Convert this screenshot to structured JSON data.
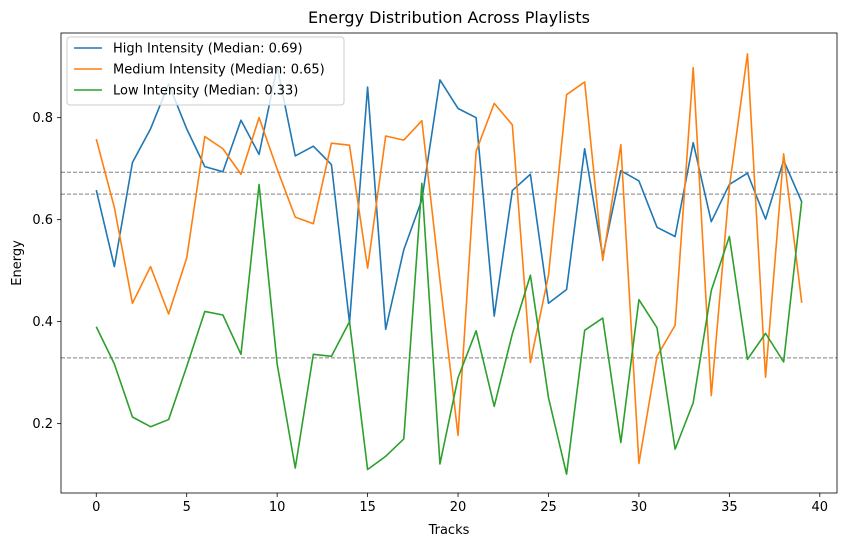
{
  "chart_data": {
    "type": "line",
    "title": "Energy Distribution Across Playlists",
    "xlabel": "Tracks",
    "ylabel": "Energy",
    "xlim": [
      -1.95,
      40.95
    ],
    "ylim": [
      0.064,
      0.966
    ],
    "xticks": [
      0,
      5,
      10,
      15,
      20,
      25,
      30,
      35,
      40
    ],
    "yticks": [
      0.2,
      0.4,
      0.6,
      0.8
    ],
    "ytick_labels": [
      "0.2",
      "0.4",
      "0.6",
      "0.8"
    ],
    "grid": false,
    "legend_position": "top-left",
    "x": [
      0,
      1,
      2,
      3,
      4,
      5,
      6,
      7,
      8,
      9,
      10,
      11,
      12,
      13,
      14,
      15,
      16,
      17,
      18,
      19,
      20,
      21,
      22,
      23,
      24,
      25,
      26,
      27,
      28,
      29,
      30,
      31,
      32,
      33,
      34,
      35,
      36,
      37,
      38,
      39
    ],
    "series": [
      {
        "name": "High Intensity (Median: 0.69)",
        "color": "#1f77b4",
        "median": 0.693,
        "values": [
          0.658,
          0.508,
          0.712,
          0.778,
          0.866,
          0.778,
          0.704,
          0.694,
          0.795,
          0.728,
          0.9,
          0.725,
          0.744,
          0.708,
          0.398,
          0.86,
          0.385,
          0.541,
          0.639,
          0.874,
          0.818,
          0.8,
          0.411,
          0.657,
          0.689,
          0.436,
          0.463,
          0.739,
          0.528,
          0.696,
          0.676,
          0.585,
          0.567,
          0.751,
          0.596,
          0.669,
          0.691,
          0.601,
          0.716,
          0.635
        ]
      },
      {
        "name": "Medium Intensity (Median: 0.65)",
        "color": "#ff7f0e",
        "median": 0.65,
        "values": [
          0.758,
          0.624,
          0.436,
          0.508,
          0.415,
          0.525,
          0.763,
          0.739,
          0.689,
          0.8,
          0.699,
          0.605,
          0.592,
          0.75,
          0.746,
          0.505,
          0.764,
          0.756,
          0.794,
          0.481,
          0.177,
          0.734,
          0.828,
          0.786,
          0.32,
          0.491,
          0.845,
          0.87,
          0.52,
          0.747,
          0.122,
          0.332,
          0.393,
          0.898,
          0.255,
          0.664,
          0.925,
          0.291,
          0.729,
          0.437
        ]
      },
      {
        "name": "Low Intensity (Median: 0.33)",
        "color": "#2ca02c",
        "median": 0.329,
        "values": [
          0.39,
          0.317,
          0.213,
          0.194,
          0.208,
          0.312,
          0.42,
          0.413,
          0.336,
          0.669,
          0.317,
          0.113,
          0.336,
          0.332,
          0.4,
          0.11,
          0.136,
          0.17,
          0.671,
          0.121,
          0.29,
          0.382,
          0.234,
          0.376,
          0.491,
          0.251,
          0.101,
          0.383,
          0.407,
          0.163,
          0.443,
          0.388,
          0.15,
          0.241,
          0.461,
          0.567,
          0.326,
          0.377,
          0.321,
          0.637
        ]
      }
    ]
  }
}
